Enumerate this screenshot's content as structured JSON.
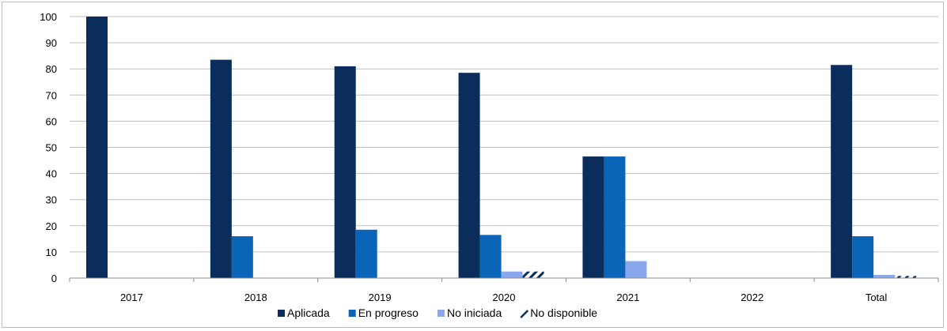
{
  "chart_data": {
    "type": "bar",
    "title": "",
    "xlabel": "",
    "ylabel": "",
    "categories": [
      "2017",
      "2018",
      "2019",
      "2020",
      "2021",
      "2022",
      "Total"
    ],
    "ylim": [
      0,
      100
    ],
    "yticks": [
      0,
      10,
      20,
      30,
      40,
      50,
      60,
      70,
      80,
      90,
      100
    ],
    "grid": true,
    "legend_position": "bottom",
    "series": [
      {
        "name": "Aplicada",
        "color": "#0b2d5b",
        "pattern": "solid",
        "values": [
          100,
          83.5,
          81,
          78.5,
          46.5,
          0,
          81.5
        ]
      },
      {
        "name": "En progreso",
        "color": "#0a64b8",
        "pattern": "solid",
        "values": [
          0,
          16,
          18.5,
          16.5,
          46.5,
          0,
          16
        ]
      },
      {
        "name": "No iniciada",
        "color": "#8aa7ee",
        "pattern": "solid",
        "values": [
          0,
          0,
          0,
          2.5,
          6.5,
          0,
          1.2
        ]
      },
      {
        "name": "No disponible",
        "color": "#0b2d5b",
        "pattern": "hatch",
        "values": [
          0,
          0,
          0,
          2.5,
          0,
          0,
          0.8
        ]
      }
    ]
  }
}
